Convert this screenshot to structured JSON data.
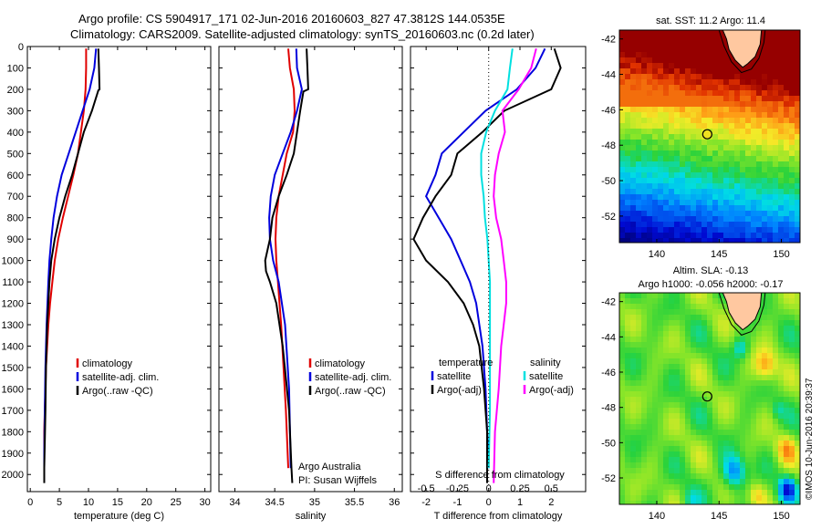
{
  "header": {
    "title_line1": "Argo profile: CS 5904917_171 02-Jun-2016 20160603_827 47.3812S 144.0535E",
    "title_line2": "Climatology: CARS2009. Satellite-adjusted climatology: synTS_20160603.nc (0.2d later)"
  },
  "credit": {
    "line1": "Argo Australia",
    "line2": "PI: Susan Wijffels"
  },
  "timestamp": "©IMOS 10-Jun-2016 20:39:37",
  "colors": {
    "climatology": "#e00000",
    "satellite": "#0000dd",
    "argo": "#000000",
    "satellite_s": "#00e0e0",
    "argo_s_adj": "#ff00ff",
    "land": "#ffc8a0"
  },
  "chart_data": [
    {
      "type": "line",
      "name": "temperature-profile",
      "xlabel": "temperature (deg C)",
      "ylabel": "",
      "xlim": [
        -0.5,
        31
      ],
      "ylim": [
        2080,
        0
      ],
      "xticks": [
        0,
        5,
        10,
        15,
        20,
        25,
        30
      ],
      "yticks": [
        0,
        100,
        200,
        300,
        400,
        500,
        600,
        700,
        800,
        900,
        1000,
        1100,
        1200,
        1300,
        1400,
        1500,
        1600,
        1700,
        1800,
        1900,
        2000
      ],
      "legend": [
        "climatology",
        "satellite-adj. clim.",
        "Argo(..raw -QC)"
      ],
      "series": [
        {
          "name": "climatology",
          "color_key": "climatology",
          "x": [
            9.6,
            9.6,
            9.5,
            9.2,
            8.7,
            8.2,
            7.4,
            6.5,
            5.6,
            4.8,
            4.2,
            3.8,
            3.4,
            3.1,
            2.9,
            2.7,
            2.6,
            2.5,
            2.4,
            2.4
          ],
          "y": [
            10,
            100,
            200,
            300,
            400,
            500,
            600,
            700,
            800,
            900,
            1000,
            1100,
            1200,
            1300,
            1400,
            1500,
            1600,
            1700,
            1800,
            1970
          ]
        },
        {
          "name": "satellite-adj. clim.",
          "color_key": "satellite",
          "x": [
            11.3,
            11.0,
            10.2,
            9.0,
            7.8,
            6.6,
            5.4,
            4.6,
            4.0,
            3.6,
            3.3,
            3.1,
            2.8,
            2.6,
            2.5,
            2.4,
            2.4
          ],
          "y": [
            10,
            100,
            200,
            300,
            400,
            500,
            600,
            700,
            800,
            900,
            1000,
            1100,
            1300,
            1500,
            1700,
            1900,
            1970
          ]
        },
        {
          "name": "Argo(..raw -QC)",
          "color_key": "argo",
          "x": [
            11.7,
            11.8,
            11.9,
            11.7,
            10.6,
            9.2,
            8.2,
            7.2,
            6.0,
            5.0,
            4.2,
            3.6,
            3.3,
            3.1,
            2.9,
            2.7,
            2.6,
            2.5,
            2.4,
            2.4
          ],
          "y": [
            10,
            100,
            200,
            205,
            300,
            400,
            500,
            600,
            700,
            800,
            900,
            1000,
            1100,
            1200,
            1300,
            1500,
            1700,
            1850,
            1970,
            2040
          ]
        }
      ]
    },
    {
      "type": "line",
      "name": "salinity-profile",
      "xlabel": "salinity",
      "ylabel": "",
      "xlim": [
        33.8,
        36.1
      ],
      "ylim": [
        2080,
        0
      ],
      "xticks": [
        34,
        34.5,
        35,
        35.5,
        36
      ],
      "xtick_labels": [
        "34",
        "34.5",
        "35",
        "35.5",
        "36"
      ],
      "legend": [
        "climatology",
        "satellite-adj. clim.",
        "Argo(..raw -QC)"
      ],
      "series": [
        {
          "name": "climatology",
          "color_key": "climatology",
          "x": [
            34.67,
            34.69,
            34.74,
            34.75,
            34.73,
            34.65,
            34.6,
            34.55,
            34.52,
            34.51,
            34.52,
            34.54,
            34.56,
            34.58,
            34.61,
            34.64,
            34.67
          ],
          "y": [
            10,
            100,
            200,
            300,
            400,
            500,
            600,
            700,
            800,
            900,
            1000,
            1100,
            1200,
            1300,
            1500,
            1700,
            1970
          ]
        },
        {
          "name": "satellite-adj. clim.",
          "color_key": "satellite",
          "x": [
            34.77,
            34.78,
            34.84,
            34.78,
            34.7,
            34.6,
            34.5,
            34.45,
            34.43,
            34.44,
            34.48,
            34.55,
            34.63,
            34.68,
            34.7
          ],
          "y": [
            10,
            100,
            200,
            300,
            400,
            500,
            600,
            700,
            800,
            900,
            1000,
            1100,
            1300,
            1600,
            1970
          ]
        },
        {
          "name": "Argo(..raw -QC)",
          "color_key": "argo",
          "x": [
            34.9,
            34.91,
            34.92,
            34.86,
            34.82,
            34.78,
            34.74,
            34.65,
            34.55,
            34.47,
            34.44,
            34.41,
            34.38,
            34.39,
            34.44,
            34.52,
            34.6,
            34.68,
            34.71,
            34.72
          ],
          "y": [
            10,
            100,
            200,
            210,
            300,
            400,
            500,
            600,
            700,
            800,
            900,
            950,
            1000,
            1050,
            1100,
            1200,
            1400,
            1700,
            1970,
            2040
          ]
        }
      ]
    },
    {
      "type": "line",
      "name": "difference-profile",
      "xlabel": "T difference from climatology",
      "x2label": "S difference from climatology",
      "xlim": [
        -2.5,
        3.1
      ],
      "x2lim": [
        -0.625,
        0.775
      ],
      "ylim": [
        2080,
        0
      ],
      "xticks": [
        -2,
        -1,
        0,
        1,
        2
      ],
      "x2ticks": [
        -0.5,
        -0.25,
        0,
        0.25,
        0.5
      ],
      "x2tick_labels": [
        "-0.5",
        "-0.25",
        "0",
        "0.25",
        "0.5"
      ],
      "legend_title_t": "temperature",
      "legend_title_s": "salinity",
      "legend_t": [
        "satellite",
        "Argo(-adj)"
      ],
      "legend_s": [
        "satellite",
        "Argo(-adj)"
      ],
      "series": [
        {
          "name": "T satellite",
          "color_key": "satellite",
          "axis": "t",
          "x": [
            1.8,
            1.5,
            0.9,
            -0.1,
            -0.8,
            -1.5,
            -1.7,
            -2.0,
            -1.6,
            -1.2,
            -0.9,
            -0.6,
            -0.4,
            -0.2,
            -0.1,
            -0.05,
            0
          ],
          "y": [
            10,
            100,
            200,
            300,
            400,
            500,
            600,
            700,
            800,
            900,
            1000,
            1100,
            1200,
            1400,
            1600,
            1800,
            1970
          ]
        },
        {
          "name": "T Argo(-adj)",
          "color_key": "argo",
          "axis": "t",
          "x": [
            2.1,
            2.3,
            2.0,
            0.5,
            -0.2,
            -1.0,
            -1.2,
            -1.7,
            -2.1,
            -2.4,
            -2.0,
            -1.3,
            -0.8,
            -0.5,
            -0.3,
            -0.15,
            -0.05,
            -0.05
          ],
          "y": [
            10,
            100,
            200,
            300,
            400,
            500,
            600,
            700,
            800,
            900,
            1000,
            1100,
            1200,
            1300,
            1400,
            1600,
            1800,
            2040
          ]
        },
        {
          "name": "S satellite",
          "color_key": "satellite_s",
          "axis": "s",
          "x": [
            0.19,
            0.17,
            0.15,
            0.05,
            -0.02,
            -0.06,
            -0.06,
            -0.04,
            -0.03,
            -0.01,
            0,
            0.01,
            0.01,
            0.01,
            0.01,
            0
          ],
          "y": [
            10,
            100,
            200,
            300,
            400,
            500,
            600,
            700,
            800,
            900,
            1000,
            1100,
            1300,
            1500,
            1700,
            1970
          ]
        },
        {
          "name": "S Argo(-adj)",
          "color_key": "argo_s_adj",
          "axis": "s",
          "x": [
            0.38,
            0.34,
            0.24,
            0.11,
            0.13,
            0.08,
            0.05,
            0.04,
            0.06,
            0.1,
            0.12,
            0.14,
            0.14,
            0.12,
            0.1,
            0.08,
            0.05,
            0.04
          ],
          "y": [
            10,
            100,
            200,
            300,
            400,
            500,
            600,
            700,
            800,
            900,
            1000,
            1100,
            1200,
            1300,
            1400,
            1600,
            1800,
            2040
          ]
        }
      ]
    },
    {
      "type": "heatmap",
      "name": "sst-map",
      "title": "sat. SST: 11.2 Argo: 11.4",
      "xlim": [
        137,
        151.5
      ],
      "ylim": [
        -53.5,
        -41.5
      ],
      "xticks": [
        140,
        145,
        150
      ],
      "yticks": [
        -42,
        -44,
        -46,
        -48,
        -50,
        -52
      ],
      "float_position": {
        "lon": 144.0535,
        "lat": -47.3812
      }
    },
    {
      "type": "heatmap",
      "name": "sla-map",
      "title_line1": "Altim. SLA: -0.13",
      "title_line2": "Argo h1000: -0.056 h2000: -0.17",
      "xlim": [
        137,
        151.5
      ],
      "ylim": [
        -53.5,
        -41.5
      ],
      "xticks": [
        140,
        145,
        150
      ],
      "yticks": [
        -42,
        -44,
        -46,
        -48,
        -50,
        -52
      ],
      "float_position": {
        "lon": 144.0535,
        "lat": -47.3812
      }
    }
  ]
}
